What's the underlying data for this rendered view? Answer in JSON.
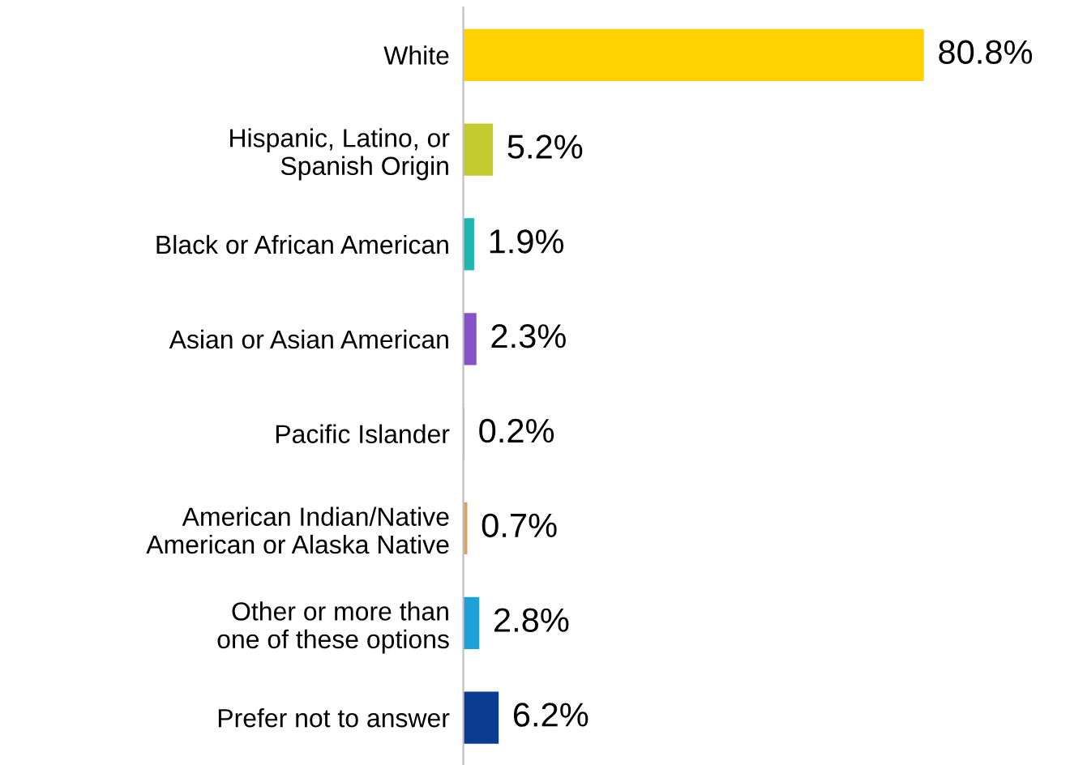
{
  "chart_data": {
    "type": "bar",
    "orientation": "horizontal",
    "categories": [
      "White",
      "Hispanic, Latino, or\nSpanish Origin",
      "Black or African American",
      "Asian or Asian American",
      "Pacific Islander",
      "American Indian/Native\nAmerican or Alaska Native",
      "Other or more than\none of these options",
      "Prefer not to answer"
    ],
    "values": [
      80.8,
      5.2,
      1.9,
      2.3,
      0.2,
      0.7,
      2.8,
      6.2
    ],
    "value_labels": [
      "80.8%",
      "5.2%",
      "1.9%",
      "2.3%",
      "0.2%",
      "0.7%",
      "2.8%",
      "6.2%"
    ],
    "colors": [
      "#ffd100",
      "#c3cb2e",
      "#1fb5b0",
      "#8a52c8",
      "#b3a6dc",
      "#d9a25e",
      "#1fa0d8",
      "#0a3d91"
    ],
    "tick_labels": "y",
    "grid": false,
    "legend": false
  }
}
